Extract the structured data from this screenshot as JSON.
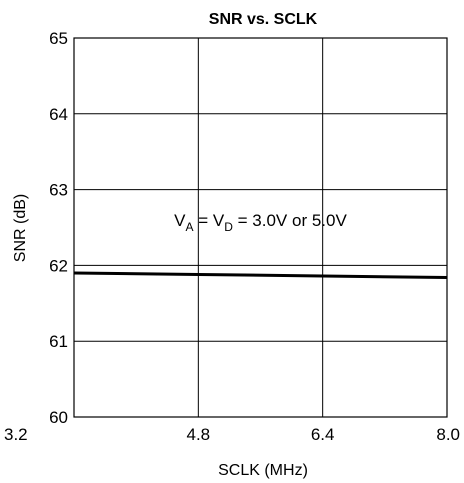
{
  "chart_data": {
    "type": "line",
    "title": "SNR vs. SCLK",
    "xlabel": "SCLK (MHz)",
    "ylabel": "SNR (dB)",
    "xlim": [
      3.2,
      8.0
    ],
    "ylim": [
      60,
      65
    ],
    "xticks": [
      3.2,
      4.8,
      6.4,
      8.0
    ],
    "xtick_labels": [
      "3.2",
      "4.8",
      "6.4",
      "8.0"
    ],
    "yticks": [
      60,
      61,
      62,
      63,
      64,
      65
    ],
    "ytick_labels": [
      "60",
      "61",
      "62",
      "63",
      "64",
      "65"
    ],
    "grid": true,
    "legend": "none",
    "annotation": {
      "parts": [
        {
          "text": "V",
          "sub": false
        },
        {
          "text": "A",
          "sub": true
        },
        {
          "text": " = V",
          "sub": false
        },
        {
          "text": "D",
          "sub": true
        },
        {
          "text": " = 3.0V or 5.0V",
          "sub": false
        }
      ],
      "x": 5.6,
      "y": 62.6
    },
    "series": [
      {
        "x": [
          3.2,
          4.8,
          6.4,
          8.0
        ],
        "y": [
          61.9,
          61.88,
          61.86,
          61.84
        ],
        "color": "#000000"
      }
    ]
  }
}
